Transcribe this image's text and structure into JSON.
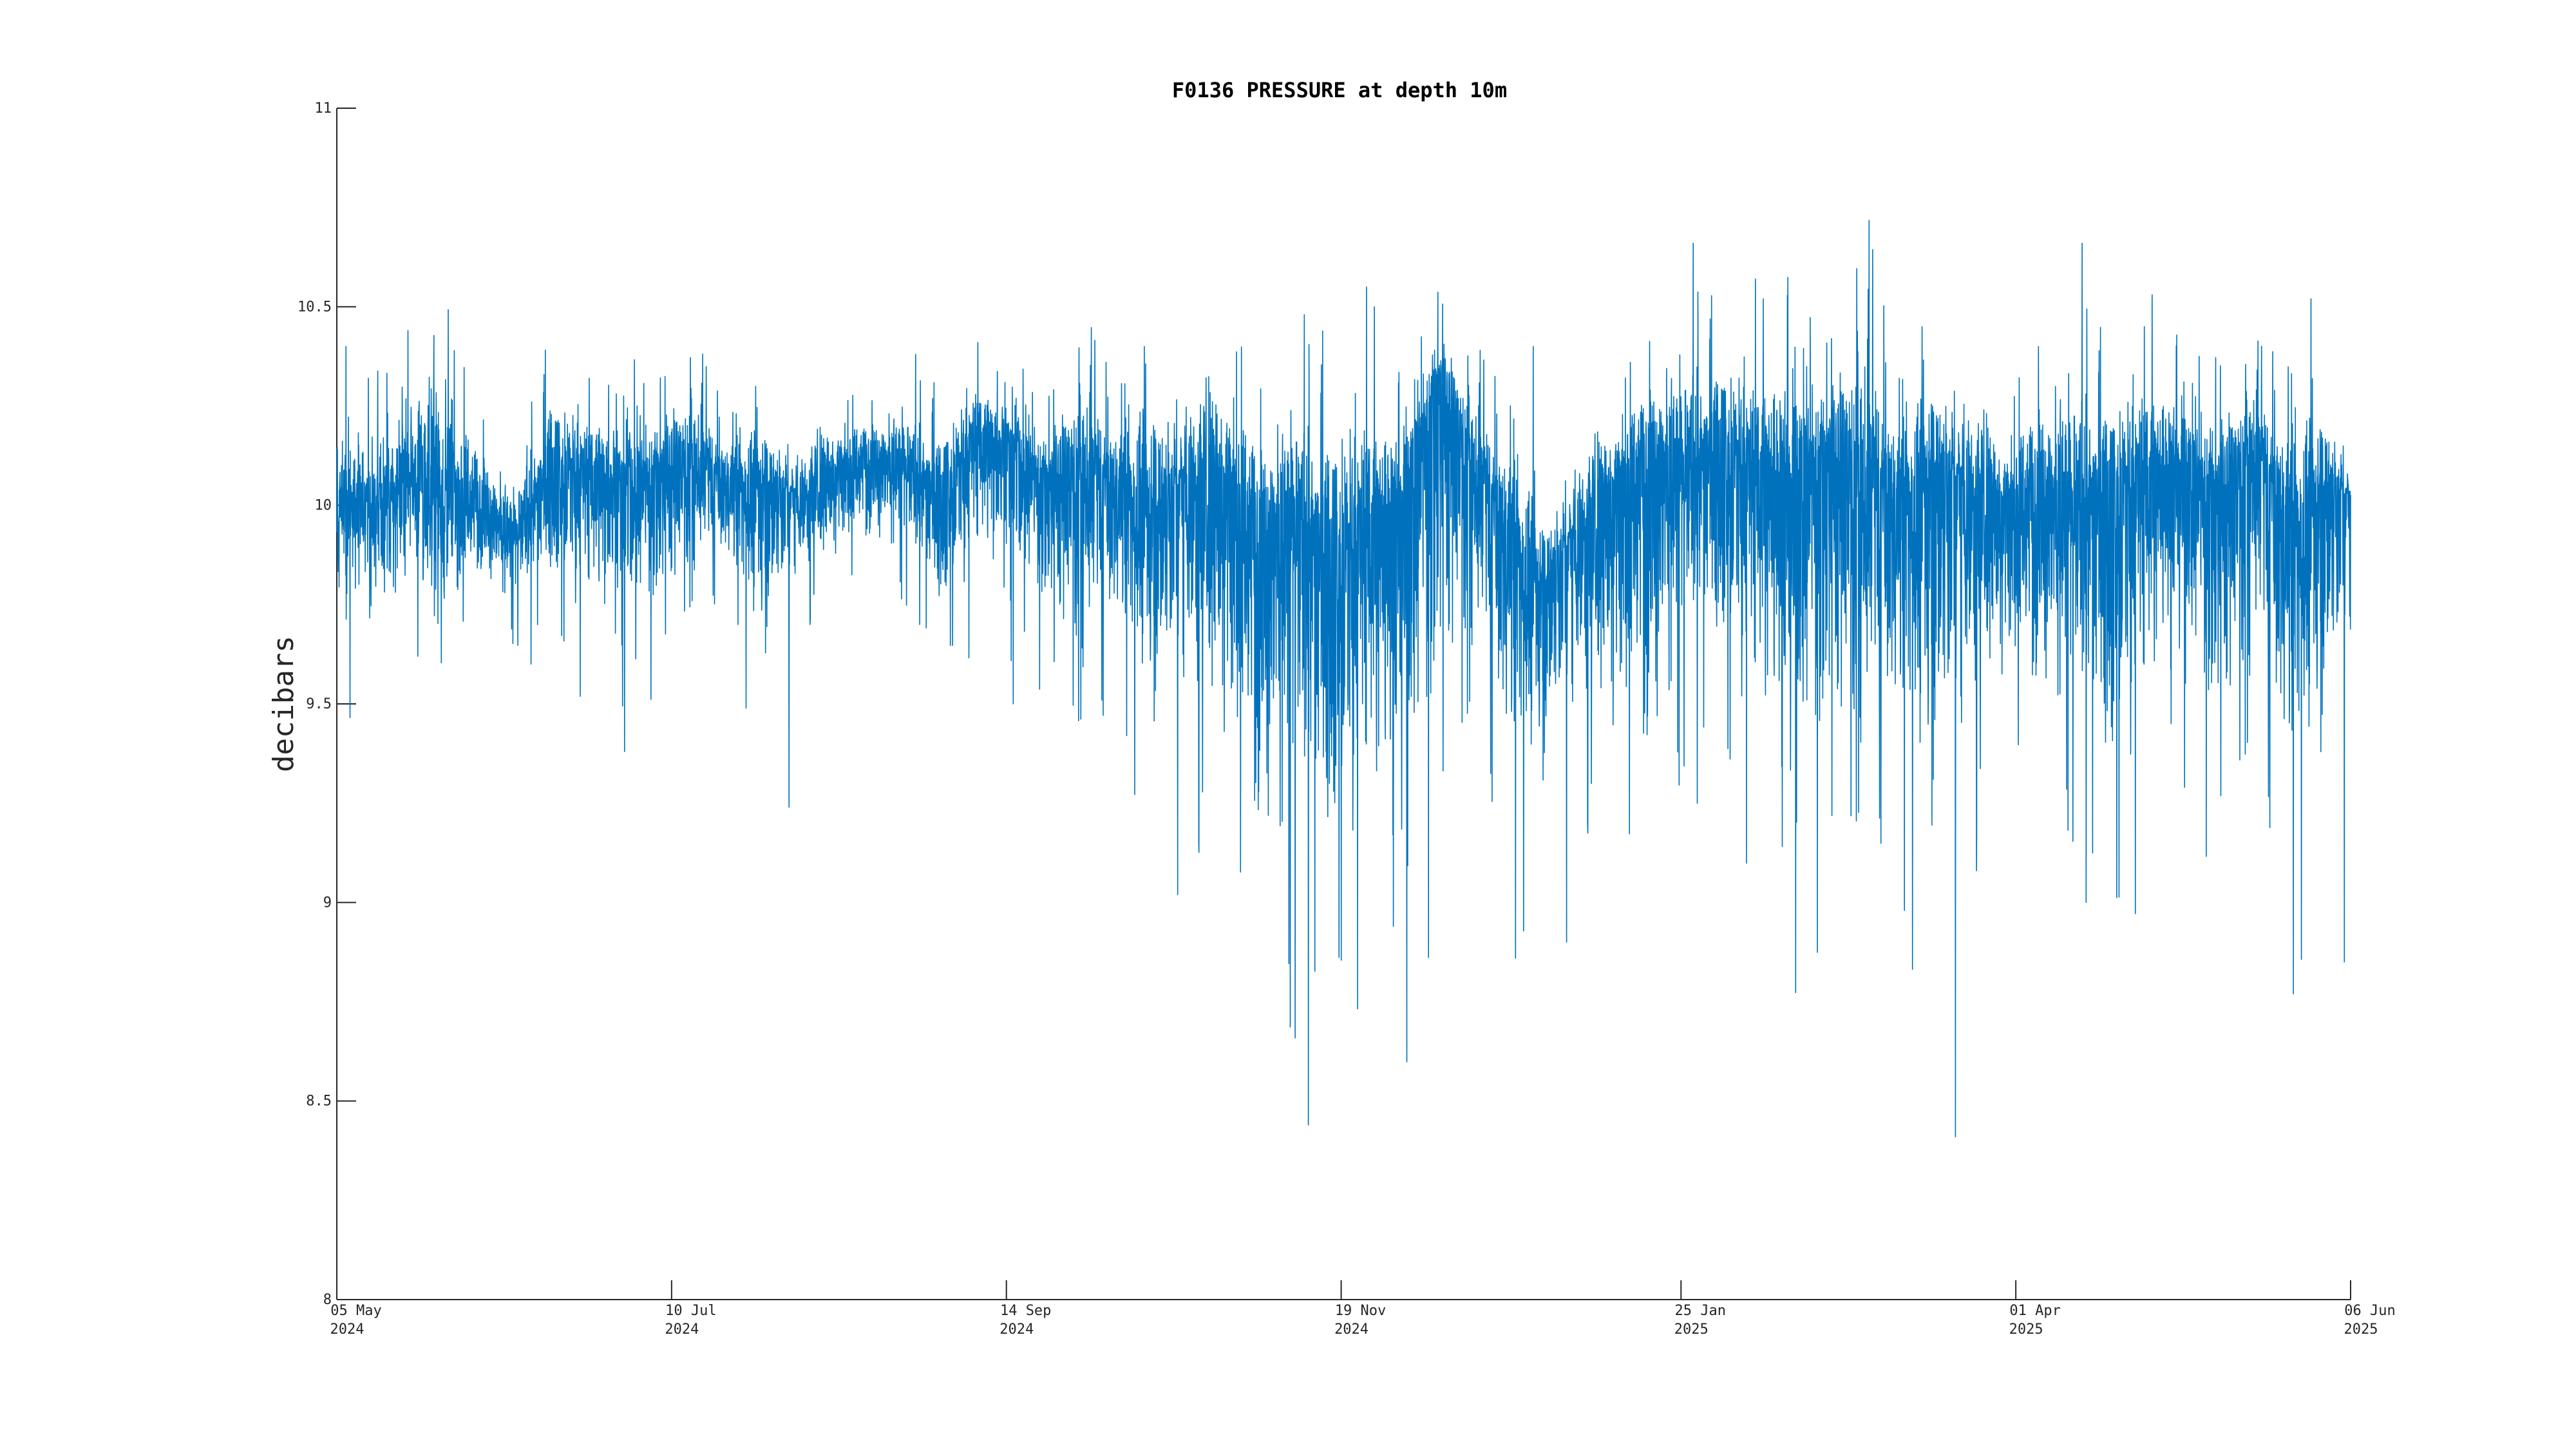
{
  "chart_data": {
    "type": "line",
    "title": "F0136 PRESSURE at depth 10m",
    "xlabel": "",
    "ylabel": "decibars",
    "x_range": [
      "2024-05-05",
      "2025-06-06"
    ],
    "ylim": [
      8,
      11
    ],
    "y_ticks": [
      8,
      8.5,
      9,
      9.5,
      10,
      10.5,
      11
    ],
    "y_tick_labels": [
      "8",
      "8.5",
      "9",
      "9.5",
      "10",
      "10.5",
      "11"
    ],
    "x_ticks": [
      {
        "date": "2024-05-05",
        "line1": "05 May",
        "line2": "2024"
      },
      {
        "date": "2024-07-10",
        "line1": "10 Jul",
        "line2": "2024"
      },
      {
        "date": "2024-09-14",
        "line1": "14 Sep",
        "line2": "2024"
      },
      {
        "date": "2024-11-19",
        "line1": "19 Nov",
        "line2": "2024"
      },
      {
        "date": "2025-01-25",
        "line1": "25 Jan",
        "line2": "2025"
      },
      {
        "date": "2025-04-01",
        "line1": "01 Apr",
        "line2": "2025"
      },
      {
        "date": "2025-06-06",
        "line1": "06 Jun",
        "line2": "2025"
      }
    ],
    "grid": false,
    "color": "#0072BD",
    "series": [
      {
        "x": [
          "2024-05-05",
          "2024-05-12",
          "2024-05-19",
          "2024-05-26",
          "2024-06-02",
          "2024-06-09",
          "2024-06-16",
          "2024-06-23",
          "2024-06-30",
          "2024-07-07",
          "2024-07-14",
          "2024-07-21",
          "2024-07-28",
          "2024-08-04",
          "2024-08-11",
          "2024-08-18",
          "2024-08-25",
          "2024-09-01",
          "2024-09-08",
          "2024-09-15",
          "2024-09-22",
          "2024-09-29",
          "2024-10-06",
          "2024-10-13",
          "2024-10-20",
          "2024-10-27",
          "2024-11-03",
          "2024-11-10",
          "2024-11-17",
          "2024-11-24",
          "2024-12-01",
          "2024-12-08",
          "2024-12-15",
          "2024-12-22",
          "2024-12-29",
          "2025-01-05",
          "2025-01-12",
          "2025-01-19",
          "2025-01-26",
          "2025-02-02",
          "2025-02-09",
          "2025-02-16",
          "2025-02-23",
          "2025-03-02",
          "2025-03-09",
          "2025-03-16",
          "2025-03-23",
          "2025-03-30",
          "2025-04-06",
          "2025-04-13",
          "2025-04-20",
          "2025-04-27",
          "2025-05-04",
          "2025-05-11",
          "2025-05-18",
          "2025-05-25",
          "2025-06-01",
          "2025-06-06"
        ],
        "mean": [
          9.98,
          10.02,
          10.06,
          10.04,
          10.0,
          9.92,
          10.08,
          10.1,
          10.05,
          10.07,
          10.1,
          10.04,
          10.06,
          10.02,
          10.08,
          10.12,
          10.1,
          10.02,
          10.18,
          10.15,
          10.05,
          10.08,
          10.02,
          9.98,
          10.08,
          10.05,
          9.92,
          9.98,
          9.85,
          9.95,
          10.02,
          10.3,
          10.1,
          9.9,
          9.8,
          9.95,
          10.05,
          10.12,
          10.08,
          10.15,
          10.1,
          10.05,
          10.12,
          10.02,
          9.98,
          10.1,
          10.05,
          10.0,
          10.02,
          9.98,
          10.05,
          10.08,
          10.1,
          10.0,
          10.15,
          9.9,
          10.05,
          10.02
        ],
        "max": [
          10.4,
          10.35,
          10.44,
          10.73,
          10.3,
          10.15,
          10.49,
          10.32,
          10.43,
          10.35,
          10.48,
          10.3,
          10.35,
          10.25,
          10.4,
          10.3,
          10.38,
          10.35,
          10.41,
          10.4,
          10.3,
          10.54,
          10.4,
          10.58,
          10.45,
          10.71,
          10.4,
          10.48,
          10.55,
          10.5,
          10.4,
          10.58,
          10.45,
          10.4,
          10.15,
          10.3,
          10.45,
          10.5,
          10.66,
          10.57,
          10.52,
          10.72,
          10.45,
          10.89,
          10.45,
          10.55,
          10.48,
          10.4,
          10.52,
          10.66,
          10.45,
          10.53,
          10.5,
          10.43,
          10.45,
          10.52,
          10.46,
          10.2
        ],
        "min": [
          9.4,
          9.5,
          9.62,
          9.4,
          9.7,
          9.6,
          9.6,
          9.46,
          9.38,
          9.46,
          9.58,
          9.7,
          9.24,
          9.7,
          9.65,
          9.75,
          9.7,
          9.5,
          9.6,
          9.5,
          9.47,
          9.12,
          9.42,
          9.02,
          9.15,
          8.74,
          8.57,
          8.44,
          8.54,
          8.69,
          8.31,
          8.84,
          9.22,
          8.86,
          8.9,
          9.2,
          8.76,
          8.77,
          9.25,
          9.22,
          8.95,
          8.56,
          8.81,
          8.8,
          8.98,
          8.41,
          9.08,
          9.1,
          9.16,
          9.0,
          8.67,
          9.02,
          9.18,
          8.92,
          9.05,
          8.77,
          8.85,
          9.4
        ]
      }
    ]
  }
}
